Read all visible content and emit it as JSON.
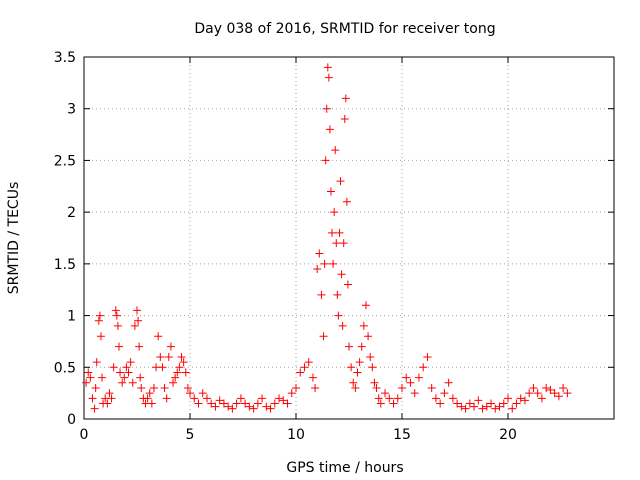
{
  "chart_data": {
    "type": "scatter",
    "title": "Day 038 of 2016, SRMTID for receiver tong",
    "xlabel": "GPS time / hours",
    "ylabel": "SRMTID / TECUs",
    "xlim": [
      0,
      25
    ],
    "ylim": [
      0,
      3.5
    ],
    "xticks": [
      0,
      5,
      10,
      15,
      20
    ],
    "xtick_labels": [
      "0",
      "5",
      "10",
      "15",
      "20"
    ],
    "yticks": [
      0,
      0.5,
      1,
      1.5,
      2,
      2.5,
      3,
      3.5
    ],
    "ytick_labels": [
      "0",
      "0.5",
      "1",
      "1.5",
      "2",
      "2.5",
      "3",
      "3.5"
    ],
    "grid": true,
    "marker": "+",
    "series": [
      {
        "name": "SRMTID",
        "color": "#ff0000",
        "x": [
          0.1,
          0.2,
          0.3,
          0.4,
          0.5,
          0.55,
          0.6,
          0.7,
          0.75,
          0.8,
          0.85,
          0.9,
          1.0,
          1.1,
          1.2,
          1.3,
          1.4,
          1.5,
          1.55,
          1.6,
          1.65,
          1.7,
          1.8,
          1.9,
          2.0,
          2.1,
          2.2,
          2.3,
          2.4,
          2.5,
          2.55,
          2.6,
          2.65,
          2.7,
          2.8,
          2.9,
          3.0,
          3.1,
          3.2,
          3.3,
          3.4,
          3.5,
          3.6,
          3.7,
          3.8,
          3.9,
          4.0,
          4.1,
          4.2,
          4.3,
          4.4,
          4.5,
          4.6,
          4.7,
          4.8,
          4.9,
          5.0,
          5.2,
          5.4,
          5.6,
          5.8,
          6.0,
          6.2,
          6.4,
          6.6,
          6.8,
          7.0,
          7.2,
          7.4,
          7.6,
          7.8,
          8.0,
          8.2,
          8.4,
          8.6,
          8.8,
          9.0,
          9.2,
          9.4,
          9.6,
          9.8,
          10.0,
          10.2,
          10.4,
          10.6,
          10.8,
          10.9,
          11.0,
          11.1,
          11.2,
          11.3,
          11.35,
          11.4,
          11.45,
          11.5,
          11.55,
          11.6,
          11.65,
          11.7,
          11.75,
          11.8,
          11.85,
          11.9,
          11.95,
          12.0,
          12.05,
          12.1,
          12.15,
          12.2,
          12.25,
          12.3,
          12.35,
          12.4,
          12.45,
          12.5,
          12.6,
          12.7,
          12.8,
          12.9,
          13.0,
          13.1,
          13.2,
          13.3,
          13.4,
          13.5,
          13.6,
          13.7,
          13.8,
          13.9,
          14.0,
          14.2,
          14.4,
          14.6,
          14.8,
          15.0,
          15.2,
          15.4,
          15.6,
          15.8,
          16.0,
          16.2,
          16.4,
          16.6,
          16.8,
          17.0,
          17.2,
          17.4,
          17.6,
          17.8,
          18.0,
          18.2,
          18.4,
          18.6,
          18.8,
          19.0,
          19.2,
          19.4,
          19.6,
          19.8,
          20.0,
          20.2,
          20.4,
          20.6,
          20.8,
          21.0,
          21.2,
          21.4,
          21.6,
          21.8,
          22.0,
          22.2,
          22.4,
          22.6,
          22.8
        ],
        "y": [
          0.35,
          0.45,
          0.4,
          0.2,
          0.1,
          0.3,
          0.55,
          0.95,
          1.0,
          0.8,
          0.4,
          0.15,
          0.2,
          0.15,
          0.25,
          0.2,
          0.5,
          1.05,
          1.0,
          0.9,
          0.7,
          0.45,
          0.35,
          0.4,
          0.5,
          0.45,
          0.55,
          0.35,
          0.9,
          1.05,
          0.95,
          0.7,
          0.4,
          0.3,
          0.2,
          0.15,
          0.2,
          0.25,
          0.15,
          0.3,
          0.5,
          0.8,
          0.6,
          0.5,
          0.3,
          0.2,
          0.6,
          0.7,
          0.35,
          0.4,
          0.45,
          0.5,
          0.6,
          0.55,
          0.45,
          0.3,
          0.25,
          0.2,
          0.15,
          0.25,
          0.2,
          0.15,
          0.12,
          0.18,
          0.15,
          0.12,
          0.1,
          0.15,
          0.2,
          0.15,
          0.12,
          0.1,
          0.15,
          0.2,
          0.12,
          0.1,
          0.15,
          0.2,
          0.18,
          0.15,
          0.25,
          0.3,
          0.45,
          0.5,
          0.55,
          0.4,
          0.3,
          1.45,
          1.6,
          1.2,
          0.8,
          1.5,
          2.5,
          3.0,
          3.4,
          3.3,
          2.8,
          2.2,
          1.8,
          1.5,
          2.0,
          2.6,
          1.7,
          1.2,
          1.0,
          1.8,
          2.3,
          1.4,
          0.9,
          1.7,
          2.9,
          3.1,
          2.1,
          1.3,
          0.7,
          0.5,
          0.35,
          0.3,
          0.45,
          0.55,
          0.7,
          0.9,
          1.1,
          0.8,
          0.6,
          0.5,
          0.35,
          0.3,
          0.2,
          0.15,
          0.25,
          0.2,
          0.15,
          0.2,
          0.3,
          0.4,
          0.35,
          0.25,
          0.4,
          0.5,
          0.6,
          0.3,
          0.2,
          0.15,
          0.25,
          0.35,
          0.2,
          0.15,
          0.12,
          0.1,
          0.15,
          0.12,
          0.18,
          0.1,
          0.12,
          0.15,
          0.1,
          0.12,
          0.15,
          0.2,
          0.1,
          0.15,
          0.2,
          0.18,
          0.25,
          0.3,
          0.25,
          0.2,
          0.3,
          0.28,
          0.25,
          0.22,
          0.3,
          0.25
        ]
      }
    ]
  }
}
